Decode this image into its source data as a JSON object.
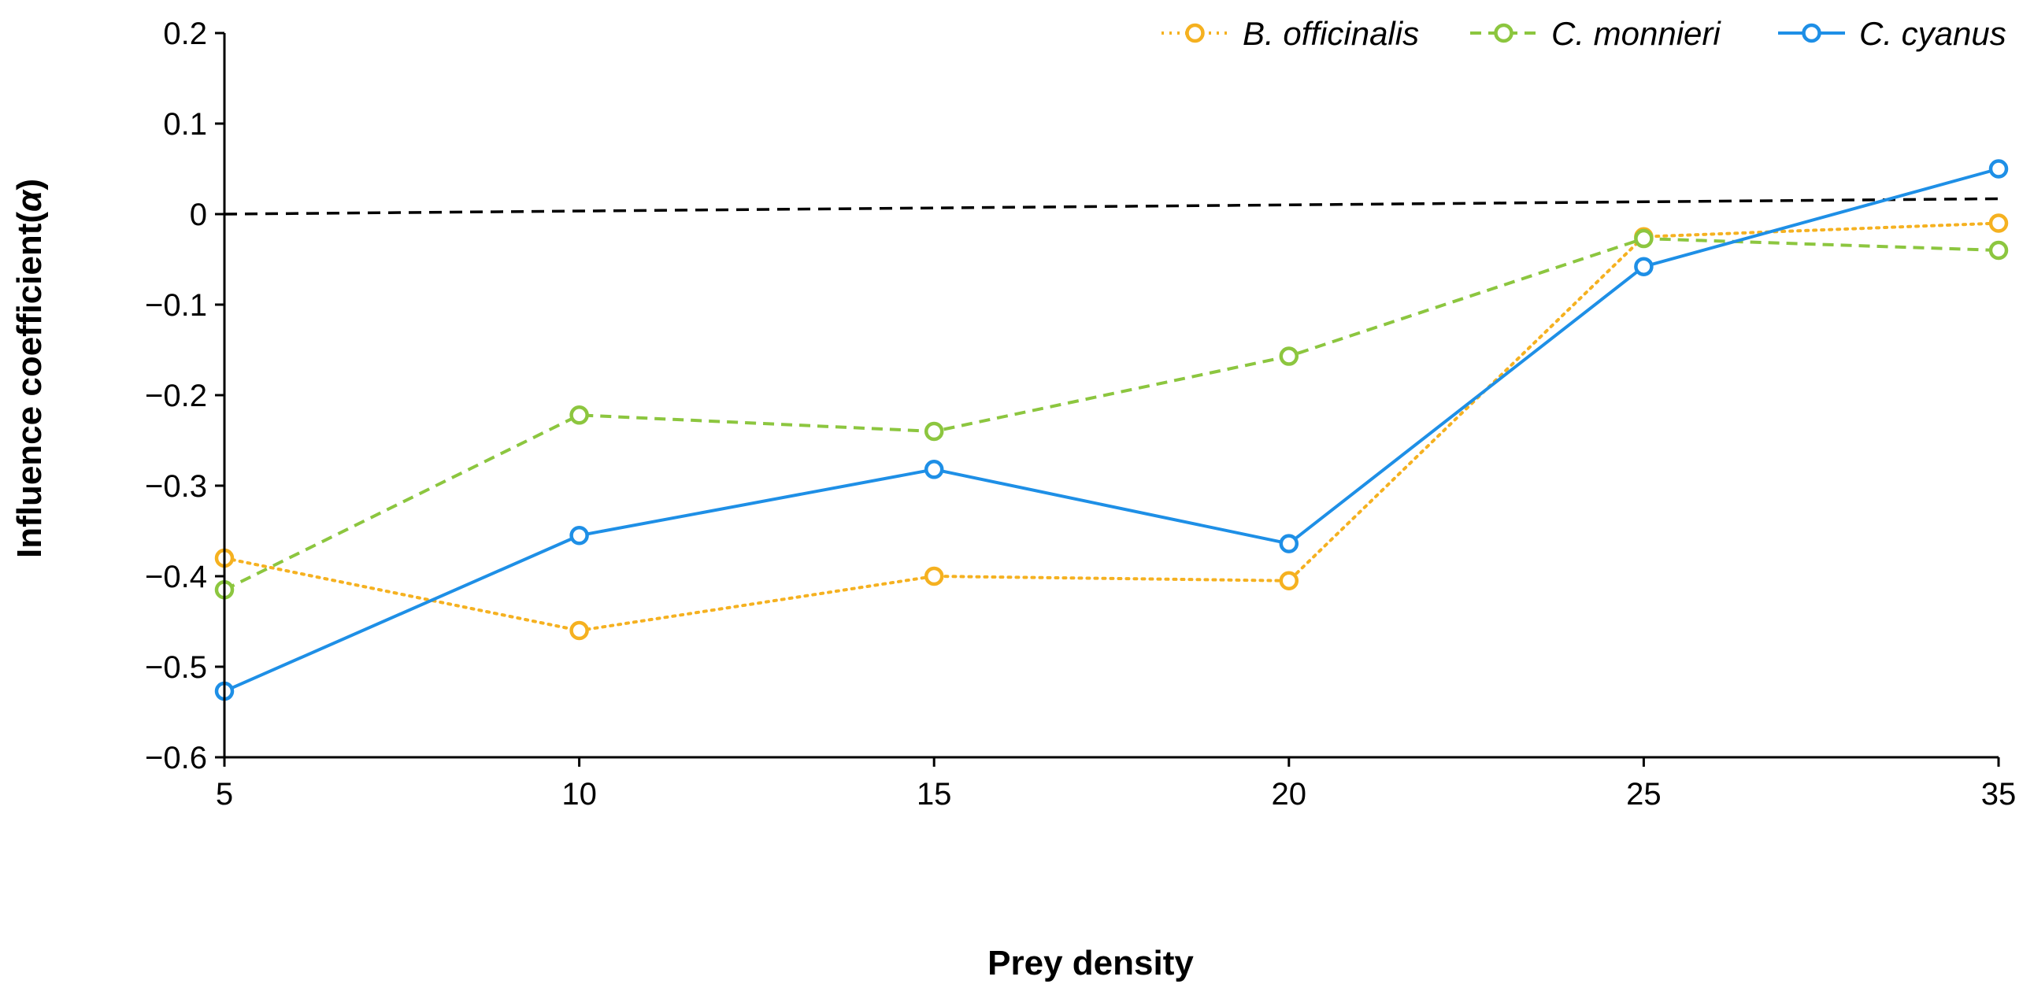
{
  "chart_data": {
    "type": "line",
    "title": "",
    "xlabel": "Prey density",
    "ylabel_prefix": "Influence coefficient(",
    "ylabel_symbol": "α",
    "ylabel_suffix": ")",
    "categories": [
      "5",
      "10",
      "15",
      "20",
      "25",
      "35"
    ],
    "ylim": [
      -0.6,
      0.2
    ],
    "yticks": [
      "0.2",
      "0.1",
      "0",
      "−0.1",
      "−0.2",
      "−0.3",
      "−0.4",
      "−0.5",
      "−0.6"
    ],
    "ytick_values": [
      0.2,
      0.1,
      0,
      -0.1,
      -0.2,
      -0.3,
      -0.4,
      -0.5,
      -0.6
    ],
    "grid": false,
    "legend_position": "top-right",
    "series": [
      {
        "name": "B. officinalis",
        "color": "#F5B120",
        "style": "dotted",
        "values": [
          -0.38,
          -0.46,
          -0.4,
          -0.405,
          -0.025,
          -0.01
        ]
      },
      {
        "name": "C. monnieri",
        "color": "#8CC63F",
        "style": "dashed",
        "values": [
          -0.415,
          -0.222,
          -0.24,
          -0.157,
          -0.027,
          -0.04
        ]
      },
      {
        "name": "C. cyanus",
        "color": "#1E8FE6",
        "style": "solid",
        "values": [
          -0.527,
          -0.355,
          -0.282,
          -0.364,
          -0.058,
          0.05
        ]
      }
    ],
    "reference_line": {
      "style": "dashed",
      "color": "#000000",
      "start_value": 0,
      "end_value": 0.017
    }
  }
}
